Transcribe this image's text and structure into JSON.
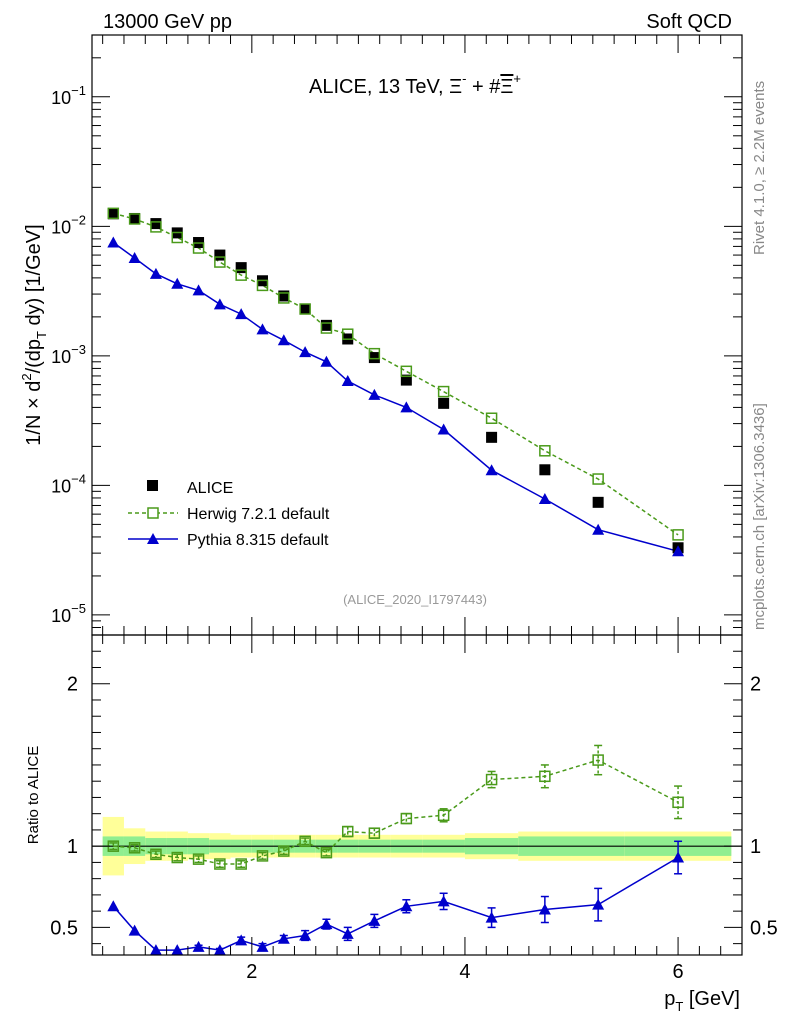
{
  "header": {
    "left": "13000 GeV pp",
    "right": "Soft QCD"
  },
  "side_labels": {
    "top": "Rivet 4.1.0, ≥ 2.2M events",
    "bottom": "mcplots.cern.ch [arXiv:1306.3436]"
  },
  "chart_data": [
    {
      "type": "scatter",
      "title_main": "ALICE, 13 TeV, ",
      "title_xi": "Ξ",
      "title_minus": "-",
      "title_plus_sym": " + #",
      "title_xibar": "Ξ",
      "title_plus": "+",
      "ylabel": "1/N × d²/(dp_T dy) [1/GeV]",
      "ylabel_a": "1/N × d",
      "ylabel_sup": "2",
      "ylabel_b": "/(dp",
      "ylabel_sub": "T",
      "ylabel_c": " dy) [1/GeV]",
      "yscale": "log",
      "ylim": [
        7e-06,
        0.3
      ],
      "xlim": [
        0.5,
        6.6
      ],
      "y_ticks": [
        {
          "value": 0.1,
          "base": "10",
          "exp": "−1"
        },
        {
          "value": 0.01,
          "base": "10",
          "exp": "−2"
        },
        {
          "value": 0.001,
          "base": "10",
          "exp": "−3"
        },
        {
          "value": 0.0001,
          "base": "10",
          "exp": "−4"
        },
        {
          "value": 1e-05,
          "base": "10",
          "exp": "−5"
        }
      ],
      "x": [
        0.7,
        0.9,
        1.1,
        1.3,
        1.5,
        1.7,
        1.9,
        2.1,
        2.3,
        2.5,
        2.7,
        2.9,
        3.15,
        3.45,
        3.8,
        4.25,
        4.75,
        5.25,
        6.0
      ],
      "series": [
        {
          "name": "ALICE",
          "marker": "filled-square",
          "color": "#000000",
          "values": [
            0.0125,
            0.0115,
            0.0105,
            0.0089,
            0.0075,
            0.006,
            0.0048,
            0.0038,
            0.0029,
            0.0023,
            0.00172,
            0.00135,
            0.00097,
            0.00065,
            0.00043,
            0.000235,
            0.000132,
            7.4e-05,
            3.3e-05
          ]
        },
        {
          "name": "Herwig 7.2.1 default",
          "marker": "open-square",
          "color": "#4a9a1a",
          "values": [
            0.0126,
            0.0114,
            0.0099,
            0.0082,
            0.0068,
            0.0053,
            0.0042,
            0.0035,
            0.0028,
            0.0023,
            0.00164,
            0.00147,
            0.00104,
            0.00076,
            0.00053,
            0.00033,
            0.000185,
            0.000112,
            4.15e-05
          ]
        },
        {
          "name": "Pythia 8.315 default",
          "marker": "filled-triangle",
          "color": "#0000cc",
          "values": [
            0.0075,
            0.0057,
            0.0043,
            0.0036,
            0.0032,
            0.0025,
            0.0021,
            0.0016,
            0.00132,
            0.00107,
            0.0009,
            0.00064,
            0.0005,
            0.0004,
            0.00027,
            0.000131,
            7.85e-05,
            4.55e-05,
            3.1e-05
          ]
        }
      ],
      "watermark": "(ALICE_2020_I1797443)"
    },
    {
      "type": "scatter",
      "ylabel": "Ratio to ALICE",
      "ylim": [
        0.33,
        2.3
      ],
      "y_ticks": [
        {
          "value": 0.5,
          "label": "0.5"
        },
        {
          "value": 1,
          "label": "1"
        },
        {
          "value": 2,
          "label": "2"
        }
      ],
      "x_ticks": [
        {
          "value": 2,
          "label": "2"
        },
        {
          "value": 4,
          "label": "4"
        },
        {
          "value": 6,
          "label": "6"
        }
      ],
      "xlabel_p": "p",
      "xlabel_sub": "T",
      "xlabel_unit": " [GeV]",
      "xlabel": "p_T [GeV]",
      "band_edges": [
        0.6,
        0.8,
        1.0,
        1.2,
        1.4,
        1.6,
        1.8,
        2.0,
        2.2,
        2.4,
        2.6,
        2.8,
        3.0,
        3.3,
        3.6,
        4.0,
        4.5,
        5.0,
        5.5,
        6.5
      ],
      "band_outer": [
        0.18,
        0.11,
        0.09,
        0.09,
        0.08,
        0.08,
        0.07,
        0.07,
        0.07,
        0.07,
        0.07,
        0.07,
        0.07,
        0.07,
        0.07,
        0.08,
        0.09,
        0.09,
        0.09
      ],
      "band_inner": [
        0.06,
        0.06,
        0.05,
        0.05,
        0.05,
        0.04,
        0.04,
        0.04,
        0.04,
        0.04,
        0.04,
        0.04,
        0.04,
        0.04,
        0.04,
        0.05,
        0.06,
        0.06,
        0.06
      ],
      "x": [
        0.7,
        0.9,
        1.1,
        1.3,
        1.5,
        1.7,
        1.9,
        2.1,
        2.3,
        2.5,
        2.7,
        2.9,
        3.15,
        3.45,
        3.8,
        4.25,
        4.75,
        5.25,
        6.0
      ],
      "series": [
        {
          "name": "Herwig 7.2.1 default",
          "color": "#4a9a1a",
          "values": [
            1.0,
            0.99,
            0.95,
            0.93,
            0.92,
            0.89,
            0.89,
            0.94,
            0.97,
            1.03,
            0.96,
            1.09,
            1.08,
            1.17,
            1.19,
            1.41,
            1.43,
            1.53,
            1.27
          ],
          "errors": [
            0.02,
            0.02,
            0.02,
            0.02,
            0.02,
            0.02,
            0.02,
            0.02,
            0.02,
            0.02,
            0.02,
            0.03,
            0.03,
            0.03,
            0.04,
            0.05,
            0.07,
            0.09,
            0.1
          ]
        },
        {
          "name": "Pythia 8.315 default",
          "color": "#0000cc",
          "values": [
            0.63,
            0.48,
            0.36,
            0.36,
            0.38,
            0.36,
            0.42,
            0.38,
            0.43,
            0.45,
            0.52,
            0.46,
            0.54,
            0.63,
            0.66,
            0.56,
            0.61,
            0.64,
            0.93
          ],
          "errors": [
            0.0,
            0.0,
            0.0,
            0.0,
            0.01,
            0.01,
            0.02,
            0.02,
            0.02,
            0.03,
            0.03,
            0.04,
            0.04,
            0.04,
            0.05,
            0.06,
            0.08,
            0.1,
            0.1
          ]
        }
      ]
    }
  ]
}
